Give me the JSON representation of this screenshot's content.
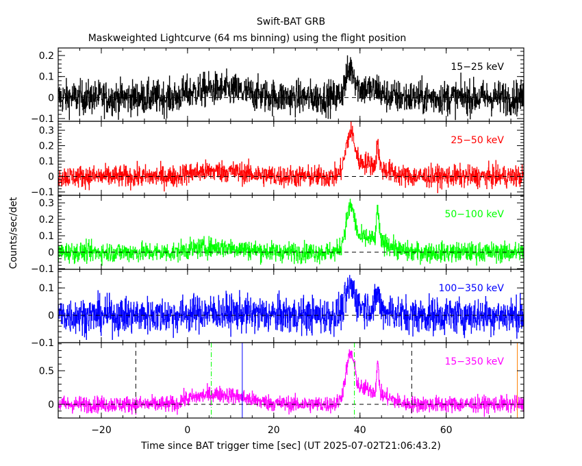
{
  "chart_data": {
    "type": "line",
    "title": "Swift-BAT GRB",
    "subtitle": "Maskweighted Lightcurve (64 ms binning) using the flight position",
    "xlabel": "Time since BAT trigger time [sec] (UT 2025-07-02T21:06:43.2)",
    "ylabel": "Counts/sec/det",
    "xlim": [
      -30,
      78
    ],
    "xticks": [
      -20,
      0,
      20,
      40,
      60
    ],
    "bin_seconds": 0.064,
    "panels": [
      {
        "name": "15-25 keV",
        "label": "15−25 keV",
        "color": "#000000",
        "ylim": [
          -0.113,
          0.236
        ],
        "yticks": [
          -0.1,
          0,
          0.1,
          0.2
        ],
        "noise": 0.04,
        "bump": 0.04,
        "peak1": 0.12,
        "peak2": 0.03
      },
      {
        "name": "25-50 keV",
        "label": "25−50 keV",
        "color": "#ff0000",
        "ylim": [
          -0.122,
          0.358
        ],
        "yticks": [
          -0.1,
          0,
          0.1,
          0.2,
          0.3
        ],
        "noise": 0.035,
        "bump": 0.035,
        "peak1": 0.25,
        "peak2": 0.15
      },
      {
        "name": "50-100 keV",
        "label": "50−100 keV",
        "color": "#00ff00",
        "ylim": [
          -0.104,
          0.346
        ],
        "yticks": [
          -0.1,
          0,
          0.1,
          0.2,
          0.3
        ],
        "noise": 0.03,
        "bump": 0.03,
        "peak1": 0.24,
        "peak2": 0.2
      },
      {
        "name": "100-350 keV",
        "label": "100−350 keV",
        "color": "#0000ff",
        "ylim": [
          -0.1,
          0.168
        ],
        "yticks": [
          -0.1,
          0,
          0.1
        ],
        "noise": 0.033,
        "bump": 0.01,
        "peak1": 0.09,
        "peak2": 0.07
      },
      {
        "name": "15-350 keV",
        "label": "15−350 keV",
        "color": "#ff00ff",
        "ylim": [
          -0.204,
          0.918
        ],
        "yticks": [
          0,
          0.5
        ],
        "noise": 0.06,
        "bump": 0.15,
        "peak1": 0.65,
        "peak2": 0.42
      }
    ],
    "vertical_lines": [
      {
        "x": -12,
        "style": "dashed",
        "color": "#000000"
      },
      {
        "x": 52,
        "style": "dashed",
        "color": "#000000"
      },
      {
        "x": 5.5,
        "style": "dashdot",
        "color": "#00ff00"
      },
      {
        "x": 38.7,
        "style": "dashdot",
        "color": "#00ff00"
      },
      {
        "x": 12.7,
        "style": "solid",
        "color": "#0000ff"
      },
      {
        "x": 76.5,
        "style": "solid",
        "color": "#ff8000"
      }
    ]
  }
}
